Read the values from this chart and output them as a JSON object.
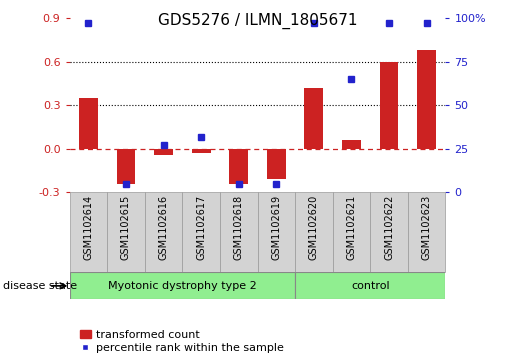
{
  "title": "GDS5276 / ILMN_1805671",
  "samples": [
    "GSM1102614",
    "GSM1102615",
    "GSM1102616",
    "GSM1102617",
    "GSM1102618",
    "GSM1102619",
    "GSM1102620",
    "GSM1102621",
    "GSM1102622",
    "GSM1102623"
  ],
  "transformed_count": [
    0.35,
    -0.24,
    -0.04,
    -0.03,
    -0.24,
    -0.21,
    0.42,
    0.06,
    0.6,
    0.68
  ],
  "percentile_rank": [
    97,
    5,
    27,
    32,
    5,
    5,
    97,
    65,
    97,
    97
  ],
  "ylim_left": [
    -0.3,
    0.9
  ],
  "ylim_right": [
    0,
    100
  ],
  "yticks_left": [
    -0.3,
    0.0,
    0.3,
    0.6,
    0.9
  ],
  "yticks_right": [
    0,
    25,
    50,
    75,
    100
  ],
  "hlines_dotted": [
    0.3,
    0.6
  ],
  "disease_groups": [
    {
      "label": "Myotonic dystrophy type 2",
      "start": 0,
      "end": 6,
      "color": "#90ee90"
    },
    {
      "label": "control",
      "start": 6,
      "end": 10,
      "color": "#90ee90"
    }
  ],
  "bar_color": "#cc2222",
  "dot_color": "#2222cc",
  "zero_line_color": "#cc2222",
  "dotted_line_color": "#000000",
  "bg_color": "#ffffff",
  "sample_box_color": "#d3d3d3",
  "sample_box_edge": "#999999",
  "legend_bar_label": "transformed count",
  "legend_dot_label": "percentile rank within the sample",
  "disease_state_label": "disease state",
  "ylabel_left_color": "#cc2222",
  "ylabel_right_color": "#2222cc",
  "title_fontsize": 11,
  "tick_fontsize": 8,
  "sample_fontsize": 7,
  "disease_fontsize": 8,
  "legend_fontsize": 8
}
